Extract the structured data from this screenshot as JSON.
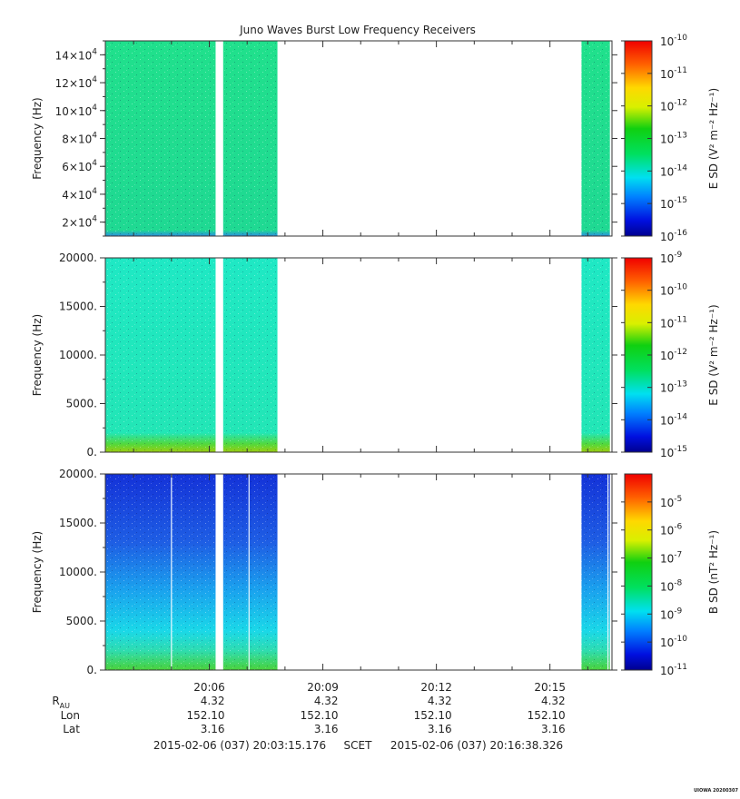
{
  "chart_data": {
    "type": "heatmap",
    "title": "Juno Waves Burst Low Frequency Receivers",
    "time_range": [
      "2015-02-06T20:03:15.176",
      "2015-02-06T20:16:38.326"
    ],
    "x_ticks": [
      "20:06",
      "20:09",
      "20:12",
      "20:15"
    ],
    "data_segments": [
      [
        "20:03:15",
        "20:06:10"
      ],
      [
        "20:06:22",
        "20:07:48"
      ],
      [
        "20:15:50",
        "20:16:35"
      ]
    ],
    "panels": [
      {
        "ylabel": "Frequency (Hz)",
        "ylim": [
          10000,
          150000
        ],
        "y_tick_values": [
          20000,
          40000,
          60000,
          80000,
          100000,
          120000,
          140000
        ],
        "y_ticks": [
          {
            "base": "2×10",
            "exp": "4"
          },
          {
            "base": "4×10",
            "exp": "4"
          },
          {
            "base": "6×10",
            "exp": "4"
          },
          {
            "base": "8×10",
            "exp": "4"
          },
          {
            "base": "10×10",
            "exp": "4"
          },
          {
            "base": "12×10",
            "exp": "4"
          },
          {
            "base": "14×10",
            "exp": "4"
          }
        ],
        "colorbar_label": "E SD (V² m⁻² Hz⁻¹)",
        "colorbar_exps": [
          -16,
          -10
        ],
        "colorbar_ticks": [
          "-16",
          "-15",
          "-14",
          "-13",
          "-12",
          "-11",
          "-10"
        ],
        "colors": {
          "background": "#1fe08a",
          "low_edge": "#1ad6a8"
        }
      },
      {
        "ylabel": "Frequency (Hz)",
        "ylim": [
          0,
          20000
        ],
        "y_tick_values": [
          0,
          5000,
          10000,
          15000,
          20000
        ],
        "y_ticks": [
          "0.",
          "5000.",
          "10000.",
          "15000.",
          "20000."
        ],
        "colorbar_label": "E SD (V² m⁻² Hz⁻¹)",
        "colorbar_exps": [
          -15,
          -9
        ],
        "colorbar_ticks": [
          "-15",
          "-14",
          "-13",
          "-12",
          "-11",
          "-10",
          "-9"
        ],
        "colors": {
          "background": "#1ee6c2",
          "low_edge": "#46d23a"
        }
      },
      {
        "ylabel": "Frequency (Hz)",
        "ylim": [
          0,
          20000
        ],
        "y_tick_values": [
          0,
          5000,
          10000,
          15000,
          20000
        ],
        "y_ticks": [
          "0.",
          "5000.",
          "10000.",
          "15000.",
          "20000."
        ],
        "colorbar_label": "B SD (nT² Hz⁻¹)",
        "colorbar_exps": [
          -11,
          -4
        ],
        "colorbar_ticks": [
          "-11",
          "-10",
          "-9",
          "-8",
          "-7",
          "-6",
          "-5"
        ],
        "colors": {
          "top": "#1a3cdc",
          "middle": "#1ad2e6",
          "low_edge": "#3cd23c"
        }
      }
    ],
    "ephemeris": {
      "rows": [
        {
          "label": "R",
          "sub": "AU",
          "values": [
            "4.32",
            "4.32",
            "4.32",
            "4.32"
          ]
        },
        {
          "label": "Lon",
          "values": [
            "152.10",
            "152.10",
            "152.10",
            "152.10"
          ]
        },
        {
          "label": "Lat",
          "values": [
            "3.16",
            "3.16",
            "3.16",
            "3.16"
          ]
        }
      ]
    },
    "footer": {
      "start": "2015-02-06 (037) 20:03:15.176",
      "scet": "SCET",
      "end": "2015-02-06 (037) 20:16:38.326"
    },
    "stamp": "UIOWA 20200307"
  }
}
